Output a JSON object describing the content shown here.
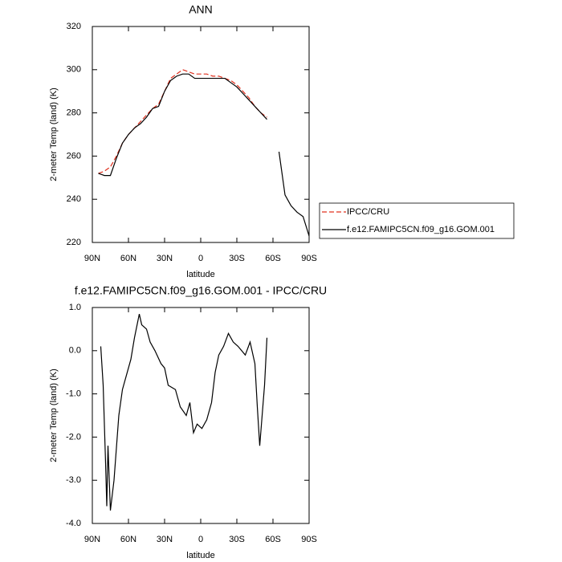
{
  "chart_data": [
    {
      "type": "line",
      "title": "ANN",
      "xlabel": "latitude",
      "ylabel": "2-meter Temp (land) (K)",
      "x": [
        85,
        80,
        75,
        70,
        65,
        60,
        55,
        50,
        45,
        40,
        35,
        30,
        25,
        20,
        15,
        10,
        5,
        0,
        -5,
        -10,
        -15,
        -20,
        -25,
        -30,
        -35,
        -40,
        -45,
        -50,
        -55,
        -60,
        -65,
        -70,
        -75,
        -80,
        -85,
        -90
      ],
      "series": [
        {
          "name": "IPCC/CRU",
          "color": "#e0301e",
          "line_style": "dashed",
          "values": [
            252,
            253,
            255,
            260,
            266,
            270,
            273,
            276,
            279,
            282,
            284,
            290,
            296,
            298,
            300,
            299,
            298,
            298,
            298,
            297,
            297,
            296,
            295,
            293,
            290,
            287,
            283,
            280,
            278,
            null,
            null,
            null,
            null,
            null,
            null,
            null
          ]
        },
        {
          "name": "f.e12.FAMIPC5CN.f09_g16.GOM.001",
          "color": "#000000",
          "line_style": "solid",
          "values": [
            252,
            251,
            251,
            259,
            266,
            270,
            273,
            275,
            278,
            282,
            283,
            290,
            295,
            297,
            298,
            298,
            296,
            296,
            296,
            296,
            296,
            296,
            294,
            292,
            289,
            286,
            283,
            280,
            277,
            null,
            262,
            242,
            237,
            234,
            232,
            223
          ]
        }
      ],
      "xlim": [
        90,
        -90
      ],
      "xticks": [
        {
          "value": 90,
          "label": "90N"
        },
        {
          "value": 60,
          "label": "60N"
        },
        {
          "value": 30,
          "label": "30N"
        },
        0,
        {
          "value": -30,
          "label": "30S"
        },
        {
          "value": -60,
          "label": "60S"
        },
        {
          "value": -90,
          "label": "90S"
        }
      ],
      "ylim": [
        220,
        320
      ],
      "yticks": [
        220,
        240,
        260,
        280,
        300,
        320
      ],
      "legend": "right"
    },
    {
      "type": "line",
      "title": "f.e12.FAMIPC5CN.f09_g16.GOM.001 - IPCC/CRU",
      "xlabel": "latitude",
      "ylabel": "2-meter Temp (land) (K)",
      "x": [
        83,
        81,
        79,
        78,
        77,
        75,
        72,
        68,
        65,
        61,
        58,
        55,
        51,
        49,
        45,
        42,
        38,
        33,
        30,
        27,
        21,
        17,
        12,
        9,
        6,
        3,
        -1,
        -5,
        -9,
        -12,
        -15,
        -19,
        -23,
        -27,
        -31,
        -37,
        -41,
        -45,
        -47,
        -49,
        -51,
        -53,
        -55
      ],
      "color": "#000000",
      "values": [
        0.1,
        -0.8,
        -2.6,
        -3.6,
        -2.2,
        -3.7,
        -3.0,
        -1.5,
        -0.9,
        -0.5,
        -0.2,
        0.3,
        0.85,
        0.6,
        0.5,
        0.2,
        0.0,
        -0.3,
        -0.4,
        -0.8,
        -0.9,
        -1.3,
        -1.5,
        -1.2,
        -1.9,
        -1.7,
        -1.8,
        -1.6,
        -1.2,
        -0.5,
        -0.1,
        0.1,
        0.4,
        0.2,
        0.1,
        -0.1,
        0.2,
        -0.3,
        -1.3,
        -2.2,
        -1.5,
        -0.8,
        0.3
      ],
      "xlim": [
        90,
        -90
      ],
      "xticks": [
        {
          "value": 90,
          "label": "90N"
        },
        {
          "value": 60,
          "label": "60N"
        },
        {
          "value": 30,
          "label": "30N"
        },
        0,
        {
          "value": -30,
          "label": "30S"
        },
        {
          "value": -60,
          "label": "60S"
        },
        {
          "value": -90,
          "label": "90S"
        }
      ],
      "ylim": [
        -4,
        1
      ],
      "yticks": [
        {
          "value": -4,
          "label": "-4.0"
        },
        {
          "value": -3,
          "label": "-3.0"
        },
        {
          "value": -2,
          "label": "-2.0"
        },
        {
          "value": -1,
          "label": "-1.0"
        },
        {
          "value": 0,
          "label": "0.0"
        },
        {
          "value": 1,
          "label": "1.0"
        }
      ]
    }
  ]
}
